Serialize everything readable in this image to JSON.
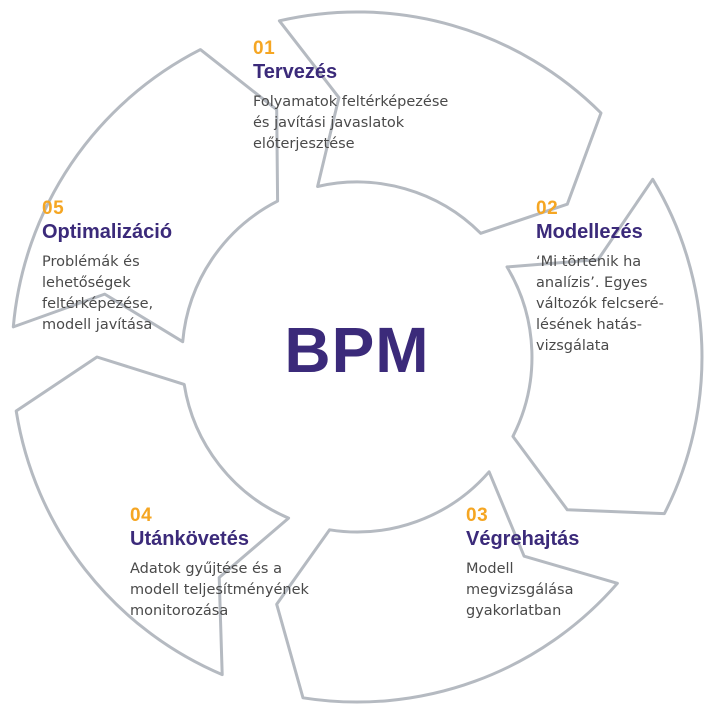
{
  "center": {
    "label": "BPM"
  },
  "colors": {
    "number_accent": "#F5A623",
    "title_text": "#3B2A7A",
    "center_text": "#3B2A7A",
    "body_text": "#4A4A4A",
    "ring_stroke": "#B5BAC1",
    "background": "#FFFFFF"
  },
  "steps": [
    {
      "number": "01",
      "title": "Tervezés",
      "description": "Folyamatok feltérképezése\nés javítási javaslatok\nelőterjesztése"
    },
    {
      "number": "02",
      "title": "Modellezés",
      "description": "‘Mi történik ha\nanalízis’. Egyes\nváltozók felcseré-\nlésének hatás-\nvizsgálata"
    },
    {
      "number": "03",
      "title": "Végrehajtás",
      "description": "Modell\nmegvizsgálása\ngyakorlatban"
    },
    {
      "number": "04",
      "title": "Utánkövetés",
      "description": "Adatok gyűjtése és a\nmodell teljesítményének\nmonitorozása"
    },
    {
      "number": "05",
      "title": "Optimalizáció",
      "description": "Problémák és\nlehetőségek\nfeltérképezése,\nmodell javítása"
    }
  ]
}
